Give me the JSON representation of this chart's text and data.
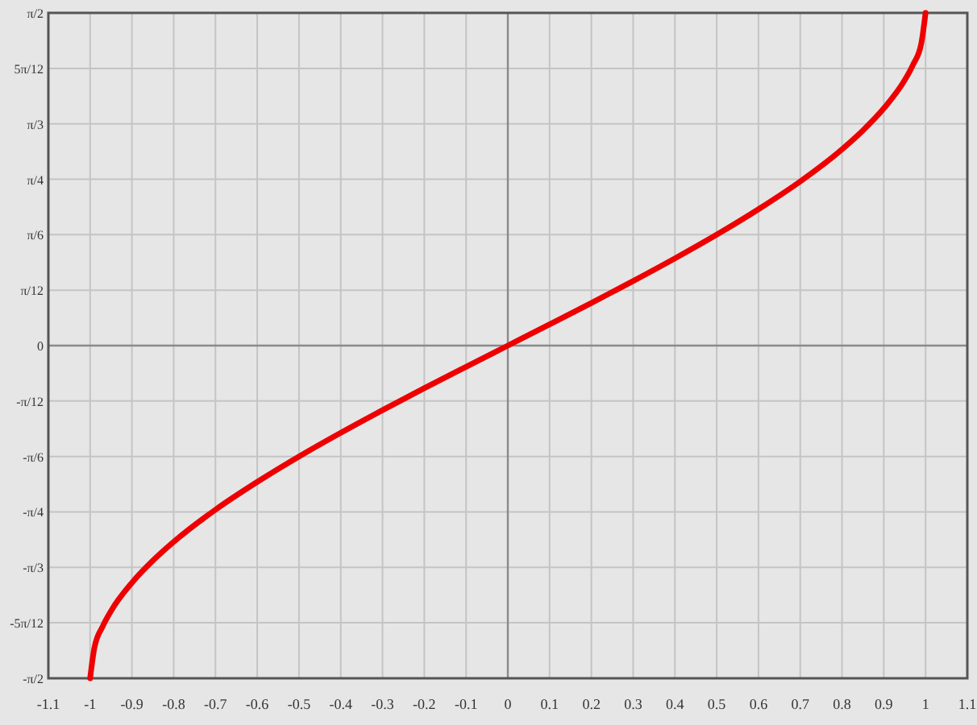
{
  "chart_data": {
    "type": "line",
    "x": [
      -1,
      -0.99,
      -0.97,
      -0.95,
      -0.9,
      -0.85,
      -0.8,
      -0.7,
      -0.6,
      -0.5,
      -0.4,
      -0.3,
      -0.2,
      -0.1,
      0,
      0.1,
      0.2,
      0.3,
      0.4,
      0.5,
      0.6,
      0.7,
      0.8,
      0.85,
      0.9,
      0.95,
      0.97,
      0.99,
      1
    ],
    "series": [
      {
        "color": "#ee0000",
        "values": [
          -1.571,
          -1.429,
          -1.326,
          -1.253,
          -1.12,
          -1.016,
          -0.927,
          -0.775,
          -0.644,
          -0.524,
          -0.412,
          -0.305,
          -0.201,
          -0.1,
          0,
          0.1,
          0.201,
          0.305,
          0.412,
          0.524,
          0.644,
          0.775,
          0.927,
          1.016,
          1.12,
          1.253,
          1.326,
          1.429,
          1.571
        ]
      }
    ],
    "xlim": [
      -1.1,
      1.1
    ],
    "xticks": [
      -1.1,
      -1,
      -0.9,
      -0.8,
      -0.7,
      -0.6,
      -0.5,
      -0.4,
      -0.3,
      -0.2,
      -0.1,
      0,
      0.1,
      0.2,
      0.3,
      0.4,
      0.5,
      0.6,
      0.7,
      0.8,
      0.9,
      1,
      1.1
    ],
    "ylim": [
      -1.571,
      1.571
    ],
    "yticks": [
      {
        "value": -1.571,
        "label": "-π/2"
      },
      {
        "value": -1.309,
        "label": "-5π/12"
      },
      {
        "value": -1.0472,
        "label": "-π/3"
      },
      {
        "value": -0.7854,
        "label": "-π/4"
      },
      {
        "value": -0.5236,
        "label": "-π/6"
      },
      {
        "value": -0.2618,
        "label": "-π/12"
      },
      0,
      {
        "value": 0.2618,
        "label": "π/12"
      },
      {
        "value": 0.5236,
        "label": "π/6"
      },
      {
        "value": 0.7854,
        "label": "π/4"
      },
      {
        "value": 1.0472,
        "label": "π/3"
      },
      {
        "value": 1.309,
        "label": "5π/12"
      },
      {
        "value": 1.571,
        "label": "π/2"
      }
    ],
    "grid": true,
    "line_style": "solid",
    "marker": "none"
  }
}
